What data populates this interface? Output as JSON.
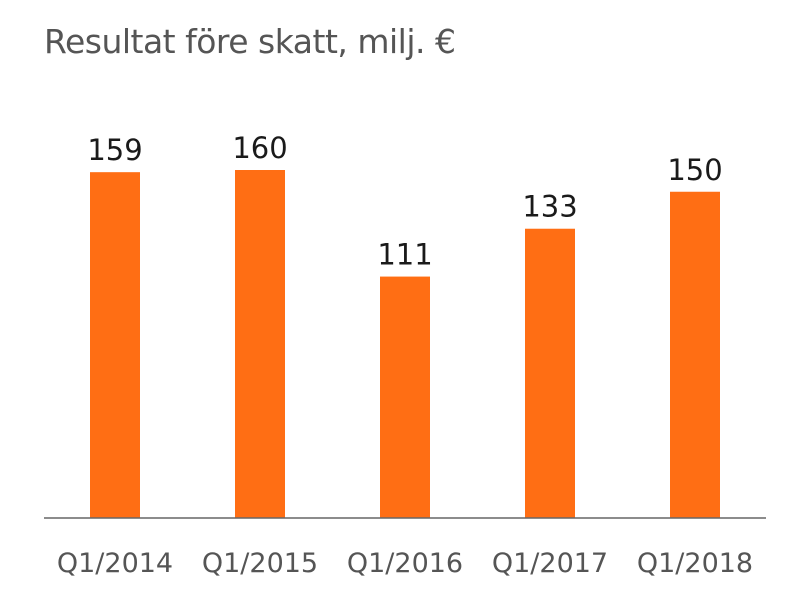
{
  "chart_data": {
    "type": "bar",
    "title": "Resultat före skatt, milj. €",
    "categories": [
      "Q1/2014",
      "Q1/2015",
      "Q1/2016",
      "Q1/2017",
      "Q1/2018"
    ],
    "values": [
      159,
      160,
      111,
      133,
      150
    ],
    "data_labels": [
      "159",
      "160",
      "111",
      "133",
      "150"
    ],
    "xlabel": "",
    "ylabel": "",
    "ylim": [
      0,
      160
    ],
    "grid": false,
    "legend": "none",
    "bar_color": "#FF6E14",
    "axis_color": "#555555",
    "text_color": "#1a1a1a"
  }
}
